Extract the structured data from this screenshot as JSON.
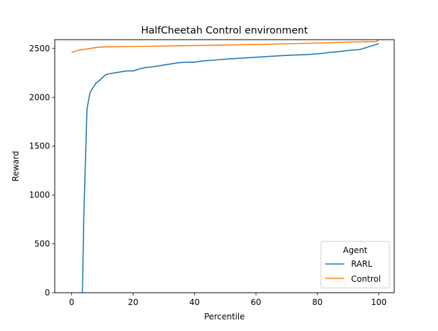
{
  "chart_data": {
    "type": "line",
    "title": "HalfCheetah Control environment",
    "xlabel": "Percentile",
    "ylabel": "Reward",
    "xlim": [
      -5.5,
      105
    ],
    "ylim": [
      0,
      2590
    ],
    "xticks": [
      0,
      20,
      40,
      60,
      80,
      100
    ],
    "yticks": [
      0,
      500,
      1000,
      1500,
      2000,
      2500
    ],
    "grid": false,
    "legend": {
      "title": "Agent",
      "placement": "lower-right"
    },
    "series": [
      {
        "name": "RARL",
        "color": "#1f77b4",
        "x": [
          3.5,
          4,
          5,
          6,
          7,
          8,
          9,
          10,
          11,
          12,
          14,
          16,
          18,
          20,
          21,
          22,
          24,
          26,
          28,
          30,
          32,
          34,
          35,
          38,
          40,
          42,
          44,
          46,
          50,
          55,
          60,
          65,
          70,
          75,
          78,
          80,
          82,
          84,
          86,
          88,
          90,
          92,
          94,
          96,
          98,
          100
        ],
        "y": [
          0,
          820,
          1880,
          2050,
          2100,
          2150,
          2170,
          2200,
          2230,
          2240,
          2250,
          2260,
          2270,
          2270,
          2280,
          2290,
          2305,
          2310,
          2320,
          2330,
          2340,
          2350,
          2355,
          2360,
          2360,
          2370,
          2375,
          2380,
          2390,
          2400,
          2410,
          2420,
          2430,
          2435,
          2440,
          2445,
          2450,
          2460,
          2465,
          2470,
          2480,
          2485,
          2490,
          2510,
          2530,
          2550
        ]
      },
      {
        "name": "Control",
        "color": "#ff7f0e",
        "x": [
          0,
          1,
          2,
          4,
          6,
          8,
          10,
          20,
          40,
          60,
          80,
          90,
          99,
          100
        ],
        "y": [
          2460,
          2470,
          2480,
          2490,
          2500,
          2510,
          2515,
          2520,
          2530,
          2540,
          2555,
          2565,
          2570,
          2590
        ]
      }
    ]
  }
}
